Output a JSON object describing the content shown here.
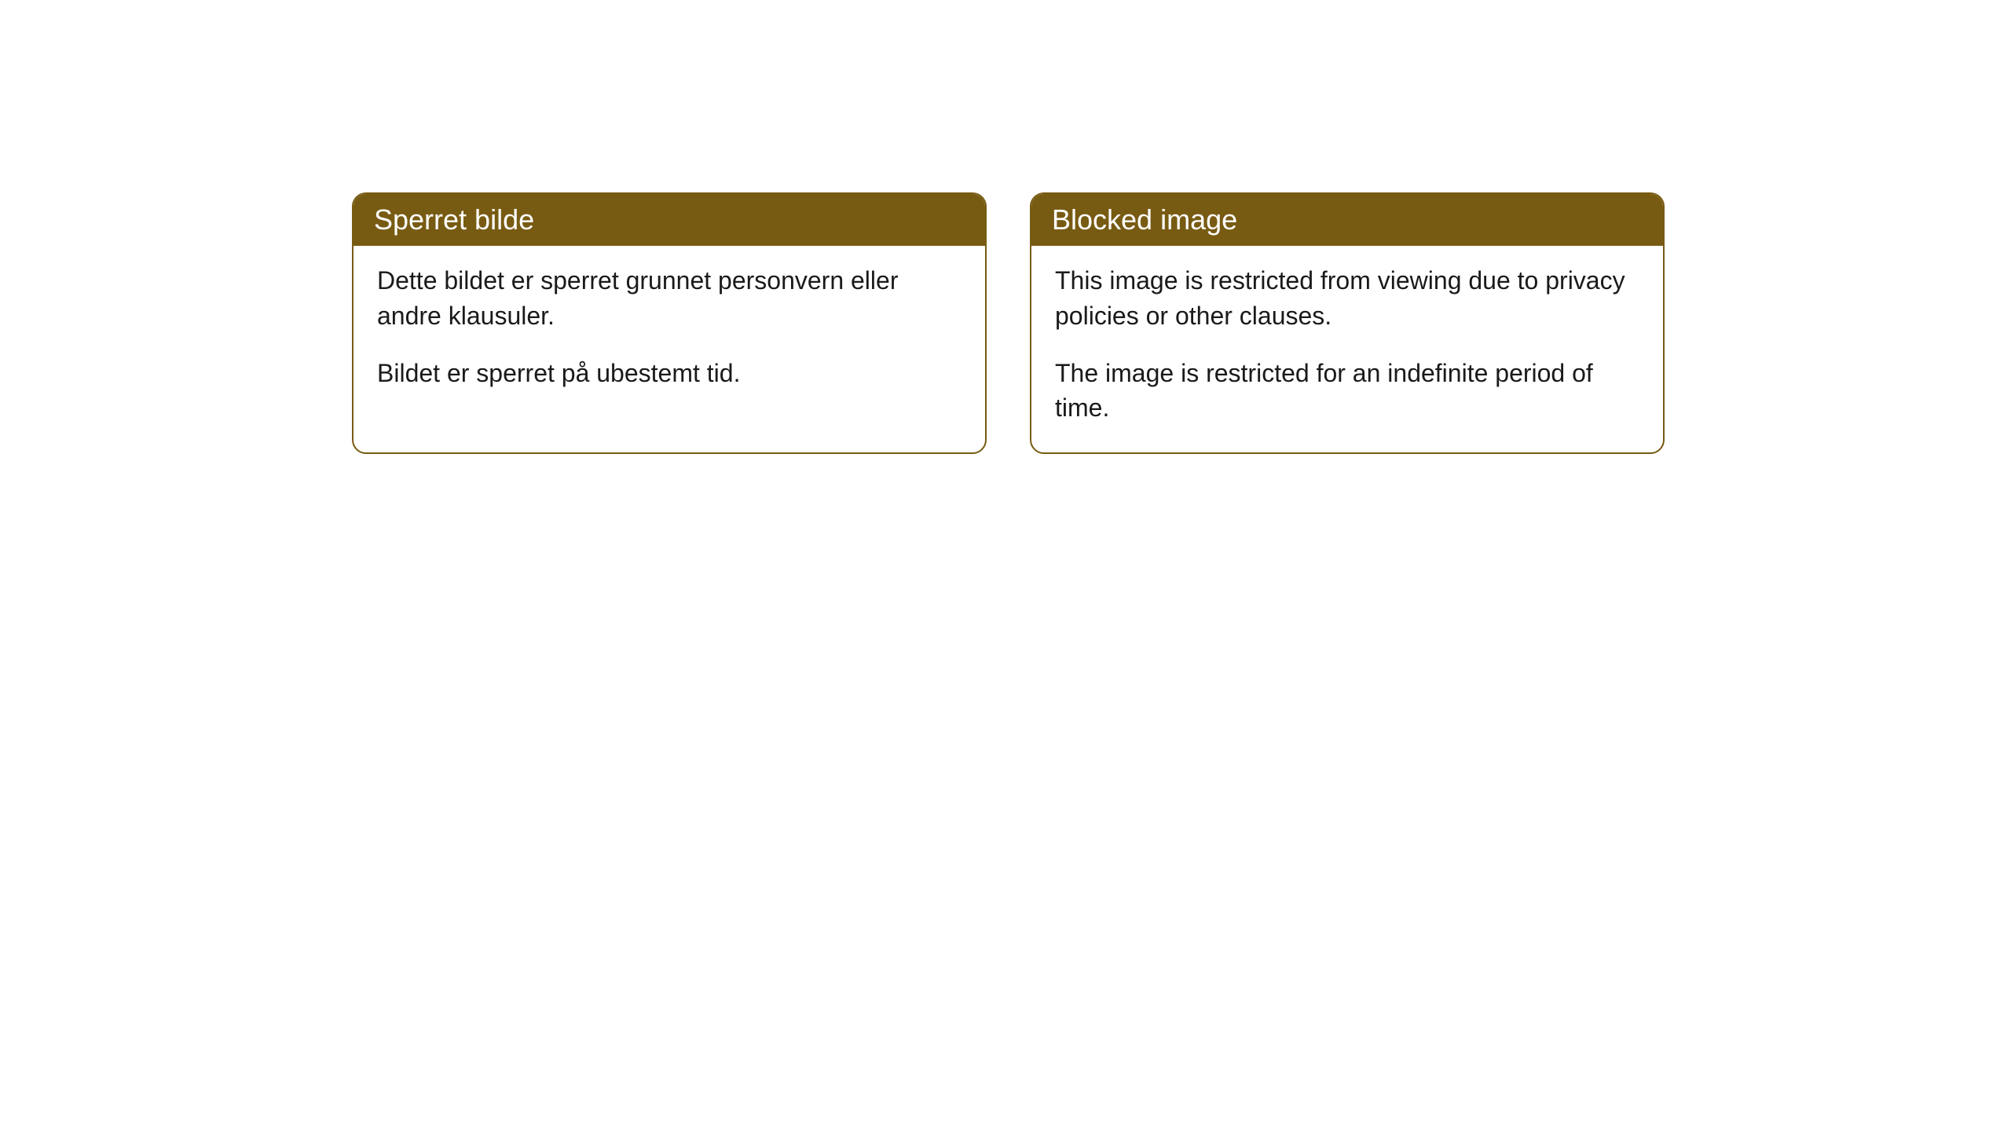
{
  "background_color": "#ffffff",
  "card_border_color": "#785b13",
  "header_background_color": "#785b13",
  "header_text_color": "#ffffff",
  "body_text_color": "#1a1a1a",
  "border_radius": 18,
  "header_fontsize": 36,
  "body_fontsize": 32,
  "cards": [
    {
      "title": "Sperret bilde",
      "paragraph1": "Dette bildet er sperret grunnet personvern eller andre klausuler.",
      "paragraph2": "Bildet er sperret på ubestemt tid."
    },
    {
      "title": "Blocked image",
      "paragraph1": "This image is restricted from viewing due to privacy policies or other clauses.",
      "paragraph2": "The image is restricted for an indefinite period of time."
    }
  ]
}
